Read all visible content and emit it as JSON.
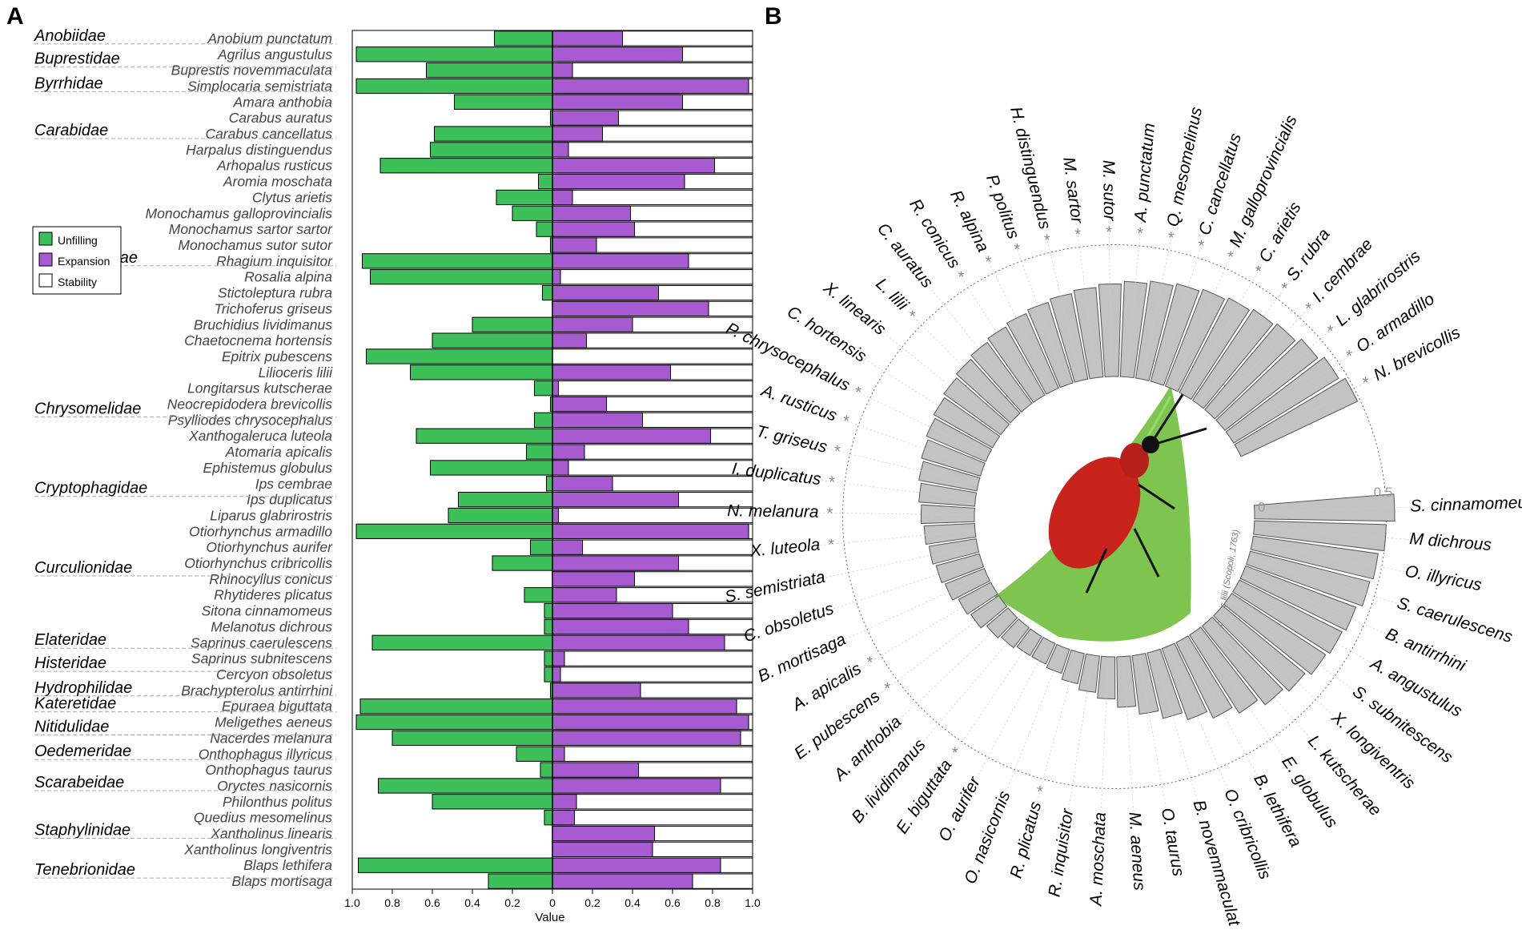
{
  "panel_a_label": "A",
  "panel_b_label": "B",
  "legend": {
    "unfilling": "Unfilling",
    "expansion": "Expansion",
    "stability": "Stability"
  },
  "colors": {
    "unfilling": "#3dbf5a",
    "expansion": "#a85ad0",
    "stability": "#ffffff",
    "radial_bar": "#c3c3c3",
    "star": "#888888"
  },
  "chart_data": [
    {
      "type": "bar",
      "orientation": "horizontal",
      "title": "",
      "xlabel": "Value",
      "xlim": [
        -1,
        1
      ],
      "ticks": [
        "1.0",
        "0.8",
        "0.6",
        "0.4",
        "0.2",
        "0",
        "0.2",
        "0.4",
        "0.6",
        "0.8",
        "1.0"
      ],
      "series": [
        {
          "name": "Unfilling",
          "direction": "left"
        },
        {
          "name": "Expansion",
          "direction": "right"
        },
        {
          "name": "Stability",
          "direction": "right"
        }
      ],
      "families": [
        {
          "name": "Anobiidae",
          "first": 0,
          "last": 0
        },
        {
          "name": "Buprestidae",
          "first": 1,
          "last": 2
        },
        {
          "name": "Byrrhidae",
          "first": 3,
          "last": 3
        },
        {
          "name": "Carabidae",
          "first": 4,
          "last": 8
        },
        {
          "name": "Cerambycidae",
          "first": 9,
          "last": 19
        },
        {
          "name": "Chrysomelidae",
          "first": 20,
          "last": 27
        },
        {
          "name": "Cryptophagidae",
          "first": 28,
          "last": 29
        },
        {
          "name": "Curculionidae",
          "first": 30,
          "last": 37
        },
        {
          "name": "Elateridae",
          "first": 38,
          "last": 38
        },
        {
          "name": "Histeridae",
          "first": 39,
          "last": 40
        },
        {
          "name": "Hydrophilidae",
          "first": 41,
          "last": 41
        },
        {
          "name": "Kateretidae",
          "first": 42,
          "last": 42
        },
        {
          "name": "Nitidulidae",
          "first": 43,
          "last": 44
        },
        {
          "name": "Oedemeridae",
          "first": 45,
          "last": 45
        },
        {
          "name": "Scarabeidae",
          "first": 46,
          "last": 48
        },
        {
          "name": "Staphylinidae",
          "first": 49,
          "last": 51
        },
        {
          "name": "Tenebrionidae",
          "first": 52,
          "last": 53
        }
      ],
      "species": [
        {
          "name": "Anobium punctatum",
          "unfilling": 0.29,
          "expansion": 0.35
        },
        {
          "name": "Agrilus angustulus",
          "unfilling": 0.98,
          "expansion": 0.65
        },
        {
          "name": "Buprestis novemmaculata",
          "unfilling": 0.63,
          "expansion": 0.1
        },
        {
          "name": "Simplocaria semistriata",
          "unfilling": 0.98,
          "expansion": 0.98
        },
        {
          "name": "Amara anthobia",
          "unfilling": 0.49,
          "expansion": 0.65
        },
        {
          "name": "Carabus auratus",
          "unfilling": 0.01,
          "expansion": 0.33
        },
        {
          "name": "Carabus cancellatus",
          "unfilling": 0.59,
          "expansion": 0.25
        },
        {
          "name": "Harpalus distinguendus",
          "unfilling": 0.61,
          "expansion": 0.08
        },
        {
          "name": "Arhopalus rusticus",
          "unfilling": 0.86,
          "expansion": 0.81
        },
        {
          "name": "Aromia moschata",
          "unfilling": 0.07,
          "expansion": 0.66
        },
        {
          "name": "Clytus arietis",
          "unfilling": 0.28,
          "expansion": 0.1
        },
        {
          "name": "Monochamus galloprovincialis",
          "unfilling": 0.2,
          "expansion": 0.39
        },
        {
          "name": "Monochamus sartor sartor",
          "unfilling": 0.08,
          "expansion": 0.41
        },
        {
          "name": "Monochamus sutor sutor",
          "unfilling": 0.01,
          "expansion": 0.22
        },
        {
          "name": "Rhagium inquisitor",
          "unfilling": 0.95,
          "expansion": 0.68
        },
        {
          "name": "Rosalia alpina",
          "unfilling": 0.91,
          "expansion": 0.04
        },
        {
          "name": "Stictoleptura rubra",
          "unfilling": 0.05,
          "expansion": 0.53
        },
        {
          "name": "Trichoferus griseus",
          "unfilling": 0.0,
          "expansion": 0.78
        },
        {
          "name": "Bruchidius lividimanus",
          "unfilling": 0.4,
          "expansion": 0.4
        },
        {
          "name": "Chaetocnema hortensis",
          "unfilling": 0.6,
          "expansion": 0.17
        },
        {
          "name": "Epitrix pubescens",
          "unfilling": 0.93,
          "expansion": 0.0
        },
        {
          "name": "Lilioceris lilii",
          "unfilling": 0.71,
          "expansion": 0.59
        },
        {
          "name": "Longitarsus kutscherae",
          "unfilling": 0.09,
          "expansion": 0.03
        },
        {
          "name": "Neocrepidodera brevicollis",
          "unfilling": 0.01,
          "expansion": 0.27
        },
        {
          "name": "Psylliodes chrysocephalus",
          "unfilling": 0.09,
          "expansion": 0.45
        },
        {
          "name": "Xanthogaleruca luteola",
          "unfilling": 0.68,
          "expansion": 0.79
        },
        {
          "name": "Atomaria apicalis",
          "unfilling": 0.13,
          "expansion": 0.16
        },
        {
          "name": "Ephistemus globulus",
          "unfilling": 0.61,
          "expansion": 0.08
        },
        {
          "name": "Ips cembrae",
          "unfilling": 0.03,
          "expansion": 0.3
        },
        {
          "name": "Ips duplicatus",
          "unfilling": 0.47,
          "expansion": 0.63
        },
        {
          "name": "Liparus glabrirostris",
          "unfilling": 0.52,
          "expansion": 0.03
        },
        {
          "name": "Otiorhynchus armadillo",
          "unfilling": 0.98,
          "expansion": 0.98
        },
        {
          "name": "Otiorhynchus aurifer",
          "unfilling": 0.11,
          "expansion": 0.15
        },
        {
          "name": "Otiorhynchus cribricollis",
          "unfilling": 0.3,
          "expansion": 0.63
        },
        {
          "name": "Rhinocyllus conicus",
          "unfilling": 0.0,
          "expansion": 0.41
        },
        {
          "name": "Rhytideres plicatus",
          "unfilling": 0.14,
          "expansion": 0.32
        },
        {
          "name": "Sitona cinnamomeus",
          "unfilling": 0.04,
          "expansion": 0.6
        },
        {
          "name": "Melanotus dichrous",
          "unfilling": 0.04,
          "expansion": 0.68
        },
        {
          "name": "Saprinus caerulescens",
          "unfilling": 0.9,
          "expansion": 0.86
        },
        {
          "name": "Saprinus subnitescens",
          "unfilling": 0.04,
          "expansion": 0.06
        },
        {
          "name": "Cercyon obsoletus",
          "unfilling": 0.04,
          "expansion": 0.04
        },
        {
          "name": "Brachypterolus antirrhini",
          "unfilling": 0.01,
          "expansion": 0.44
        },
        {
          "name": "Epuraea biguttata",
          "unfilling": 0.96,
          "expansion": 0.92
        },
        {
          "name": "Meligethes aeneus",
          "unfilling": 0.98,
          "expansion": 0.98
        },
        {
          "name": "Nacerdes melanura",
          "unfilling": 0.8,
          "expansion": 0.94
        },
        {
          "name": "Onthophagus illyricus",
          "unfilling": 0.18,
          "expansion": 0.06
        },
        {
          "name": "Onthophagus taurus",
          "unfilling": 0.06,
          "expansion": 0.43
        },
        {
          "name": "Oryctes nasicornis",
          "unfilling": 0.87,
          "expansion": 0.84
        },
        {
          "name": "Philonthus politus",
          "unfilling": 0.6,
          "expansion": 0.12
        },
        {
          "name": "Quedius mesomelinus",
          "unfilling": 0.04,
          "expansion": 0.11
        },
        {
          "name": "Xantholinus linearis",
          "unfilling": 0.0,
          "expansion": 0.51
        },
        {
          "name": "Xantholinus longiventris",
          "unfilling": 0.0,
          "expansion": 0.5
        },
        {
          "name": "Blaps lethifera",
          "unfilling": 0.97,
          "expansion": 0.84
        },
        {
          "name": "Blaps mortisaga",
          "unfilling": 0.32,
          "expansion": 0.7
        }
      ]
    },
    {
      "type": "radial-bar",
      "title": "",
      "axis_labels": [
        "0",
        "0.5"
      ],
      "image_caption": "Lilioceris lilii (Scopoli, 1763)",
      "significance_marker": "*",
      "species_clockwise_from_start": [
        {
          "label": "S. cinnamomeus",
          "value": 0.5,
          "star": false
        },
        {
          "label": "M dichrous",
          "value": 0.47,
          "star": false
        },
        {
          "label": "O. illyricus",
          "value": 0.45,
          "star": false
        },
        {
          "label": "S. caerulescens",
          "value": 0.44,
          "star": false
        },
        {
          "label": "B. antirrhini",
          "value": 0.42,
          "star": false
        },
        {
          "label": "A. angustulus",
          "value": 0.41,
          "star": false
        },
        {
          "label": "S. subnitescens",
          "value": 0.4,
          "star": false
        },
        {
          "label": "X. longiventris",
          "value": 0.38,
          "star": false
        },
        {
          "label": "L. kutscherae",
          "value": 0.36,
          "star": false
        },
        {
          "label": "E. globulus",
          "value": 0.33,
          "star": false
        },
        {
          "label": "B. lethifera",
          "value": 0.3,
          "star": false
        },
        {
          "label": "O. cribricollis",
          "value": 0.27,
          "star": false
        },
        {
          "label": "B. novemmaculata",
          "value": 0.24,
          "star": false
        },
        {
          "label": "O. taurus",
          "value": 0.21,
          "star": false
        },
        {
          "label": "M. aeneus",
          "value": 0.18,
          "star": false
        },
        {
          "label": "A. moschata",
          "value": 0.15,
          "star": false
        },
        {
          "label": "R. inquisitor",
          "value": 0.13,
          "star": false
        },
        {
          "label": "R. plicatus",
          "value": 0.11,
          "star": true
        },
        {
          "label": "O. nasicornis",
          "value": 0.09,
          "star": false
        },
        {
          "label": "O. aurifer",
          "value": 0.08,
          "star": false
        },
        {
          "label": "E. biguttata",
          "value": 0.08,
          "star": true
        },
        {
          "label": "B. lividimanus",
          "value": 0.09,
          "star": false
        },
        {
          "label": "A. anthobia",
          "value": 0.1,
          "star": false
        },
        {
          "label": "E. pubescens",
          "value": 0.12,
          "star": true
        },
        {
          "label": "A. apicalis",
          "value": 0.13,
          "star": true
        },
        {
          "label": "B. mortisaga",
          "value": 0.15,
          "star": false
        },
        {
          "label": "C. obsoletus",
          "value": 0.16,
          "star": false
        },
        {
          "label": "S. semistriata",
          "value": 0.17,
          "star": false
        },
        {
          "label": "X. luteola",
          "value": 0.18,
          "star": true
        },
        {
          "label": "N. melanura",
          "value": 0.19,
          "star": true
        },
        {
          "label": "I. duplicatus",
          "value": 0.2,
          "star": true
        },
        {
          "label": "T. griseus",
          "value": 0.21,
          "star": true
        },
        {
          "label": "A. rusticus",
          "value": 0.22,
          "star": true
        },
        {
          "label": "P. chrysocephalus",
          "value": 0.23,
          "star": true
        },
        {
          "label": "C. hortensis",
          "value": 0.24,
          "star": false
        },
        {
          "label": "X. linearis",
          "value": 0.25,
          "star": false
        },
        {
          "label": "L. lilii",
          "value": 0.26,
          "star": true
        },
        {
          "label": "C. auratus",
          "value": 0.27,
          "star": false
        },
        {
          "label": "R. conicus",
          "value": 0.28,
          "star": true
        },
        {
          "label": "R. alpina",
          "value": 0.29,
          "star": true
        },
        {
          "label": "P. politus",
          "value": 0.3,
          "star": true
        },
        {
          "label": "H. distinguendus",
          "value": 0.31,
          "star": true
        },
        {
          "label": "M. sartor",
          "value": 0.32,
          "star": true
        },
        {
          "label": "M. sutor",
          "value": 0.33,
          "star": true
        },
        {
          "label": "A. punctatum",
          "value": 0.34,
          "star": true
        },
        {
          "label": "Q. mesomelinus",
          "value": 0.35,
          "star": true
        },
        {
          "label": "C. cancellatus",
          "value": 0.36,
          "star": true
        },
        {
          "label": "M. galloprovincialis",
          "value": 0.37,
          "star": true
        },
        {
          "label": "C. arietis",
          "value": 0.38,
          "star": true
        },
        {
          "label": "S. rubra",
          "value": 0.39,
          "star": true
        },
        {
          "label": "I. cembrae",
          "value": 0.4,
          "star": true
        },
        {
          "label": "L. glabrirostris",
          "value": 0.42,
          "star": true
        },
        {
          "label": "O. armadillo",
          "value": 0.44,
          "star": true
        },
        {
          "label": "N. brevicollis",
          "value": 0.46,
          "star": true
        }
      ]
    }
  ]
}
